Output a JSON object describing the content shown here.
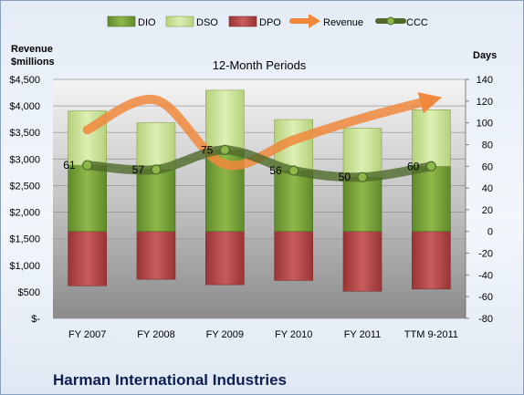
{
  "company": "Harman International Industries",
  "chart_data": {
    "type": "bar",
    "title": "12-Month Periods",
    "categories": [
      "FY 2007",
      "FY 2008",
      "FY 2009",
      "FY 2010",
      "FY 2011",
      "TTM 9-2011"
    ],
    "left_axis": {
      "title_line1": "Revenue",
      "title_line2": "$millions",
      "ticks": [
        "$-",
        "$500",
        "$1,000",
        "$1,500",
        "$2,000",
        "$2,500",
        "$3,000",
        "$3,500",
        "$4,000",
        "$4,500"
      ],
      "ylim": [
        0,
        4500
      ]
    },
    "right_axis": {
      "title": "Days",
      "ticks": [
        "-80",
        "-60",
        "-40",
        "-20",
        "0",
        "20",
        "40",
        "60",
        "80",
        "100",
        "120",
        "140"
      ],
      "ylim": [
        -80,
        140
      ]
    },
    "grid": true,
    "legend_position": "top",
    "series": [
      {
        "name": "DIO",
        "axis": "days",
        "color": "#7aa03a",
        "values": [
          61,
          57,
          75,
          56,
          50,
          60
        ]
      },
      {
        "name": "DSO",
        "axis": "days",
        "color": "#c8e093",
        "values": [
          50,
          43,
          55,
          47,
          45,
          52
        ]
      },
      {
        "name": "DPO",
        "axis": "days",
        "color": "#b84a4a",
        "values": [
          -50,
          -44,
          -49,
          -45,
          -55,
          -53
        ]
      },
      {
        "name": "Revenue",
        "axis": "millions",
        "color": "#f0883c",
        "values": [
          3550,
          4110,
          2900,
          3360,
          3770,
          4110
        ]
      },
      {
        "name": "CCC",
        "axis": "days",
        "color": "#4f6a2a",
        "values": [
          61,
          57,
          75,
          56,
          50,
          60
        ]
      }
    ],
    "ccc_labels": [
      "61",
      "57",
      "75",
      "56",
      "50",
      "60"
    ]
  }
}
